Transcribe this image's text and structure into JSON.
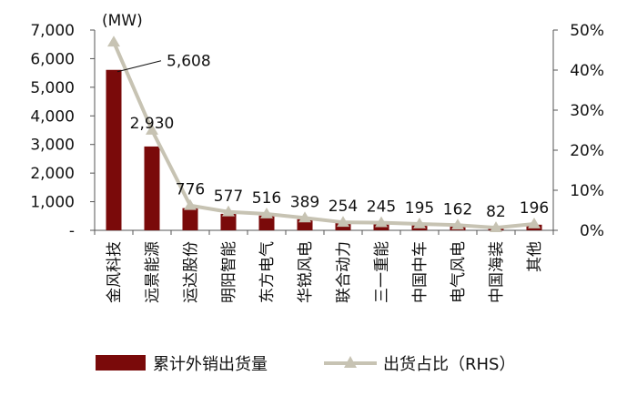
{
  "chart_data": {
    "type": "bar",
    "y_unit_label": "(MW)",
    "categories": [
      "金风科技",
      "远景能源",
      "运达股份",
      "明阳智能",
      "东方电气",
      "华锐风电",
      "联合动力",
      "三一重能",
      "中国中车",
      "电气风电",
      "中国海装",
      "其他"
    ],
    "series": [
      {
        "name": "累计外销出货量",
        "kind": "bar",
        "axis": "left",
        "color": "#7a0a0a",
        "values": [
          5608,
          2930,
          776,
          577,
          516,
          389,
          254,
          245,
          195,
          162,
          82,
          196
        ],
        "value_labels": [
          "5,608",
          "2,930",
          "776",
          "577",
          "516",
          "389",
          "254",
          "245",
          "195",
          "162",
          "82",
          "196"
        ]
      },
      {
        "name": "出货占比（RHS）",
        "kind": "line",
        "axis": "right",
        "color": "#c7c3b3",
        "marker": "triangle",
        "values": [
          0.47,
          0.25,
          0.062,
          0.046,
          0.041,
          0.031,
          0.02,
          0.019,
          0.016,
          0.013,
          0.0065,
          0.016
        ]
      }
    ],
    "y_left": {
      "min": 0,
      "max": 7000,
      "step": 1000,
      "tick_labels": [
        "-",
        "1,000",
        "2,000",
        "3,000",
        "4,000",
        "5,000",
        "6,000",
        "7,000"
      ]
    },
    "y_right": {
      "min": 0,
      "max": 0.5,
      "step": 0.1,
      "tick_labels": [
        "0%",
        "10%",
        "20%",
        "30%",
        "40%",
        "50%"
      ]
    },
    "grid": false,
    "legend": {
      "position": "bottom"
    }
  }
}
